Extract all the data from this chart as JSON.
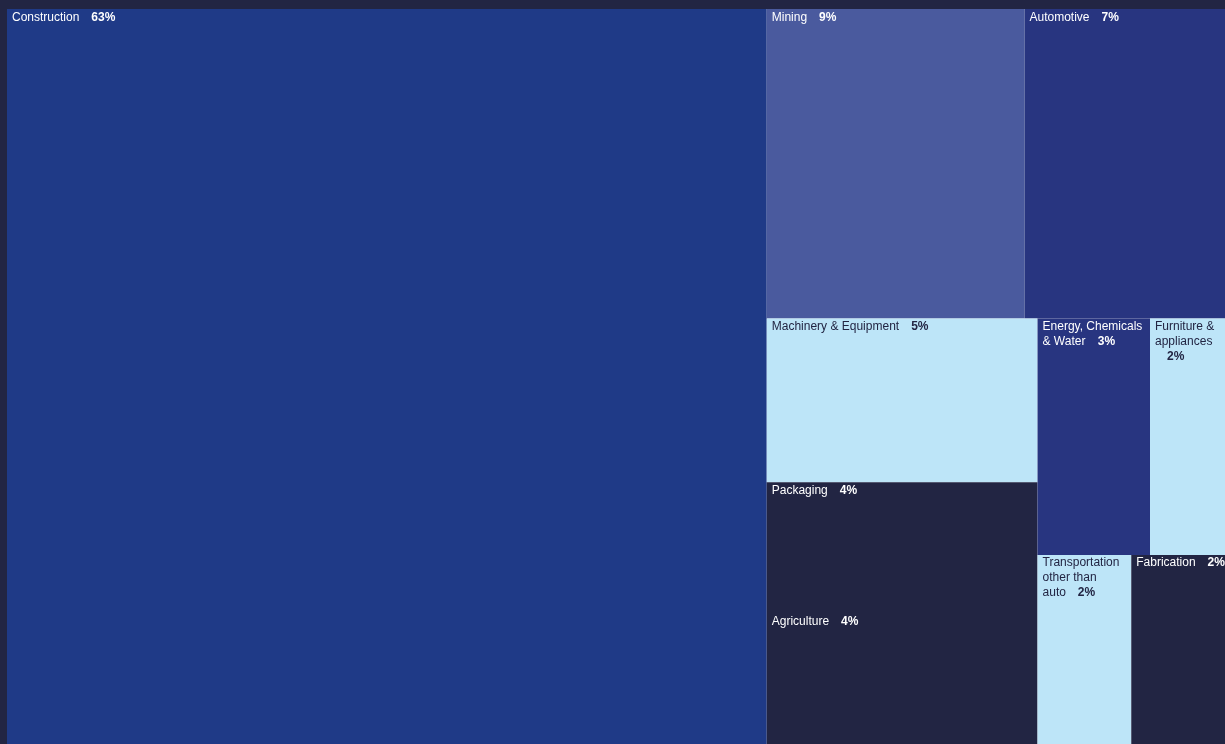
{
  "chart_data": {
    "type": "other",
    "categories": [
      "Construction",
      "Mining",
      "Automotive",
      "Machinery & Equipment",
      "Packaging",
      "Agriculture",
      "Energy, Chemicals & Water",
      "Furniture & appliances",
      "Transportation other than auto",
      "Fabrication"
    ],
    "values": [
      63,
      9,
      7,
      5,
      4,
      4,
      3,
      2,
      2,
      2
    ],
    "value_labels": [
      "63%",
      "9%",
      "7%",
      "5%",
      "4%",
      "4%",
      "3%",
      "2%",
      "2%",
      "2%"
    ],
    "colors": [
      "#1f3a87",
      "#4a5a9e",
      "#283580",
      "#bde5f8",
      "#222543",
      "#222543",
      "#283580",
      "#bde5f8",
      "#bde5f8",
      "#222543"
    ]
  }
}
